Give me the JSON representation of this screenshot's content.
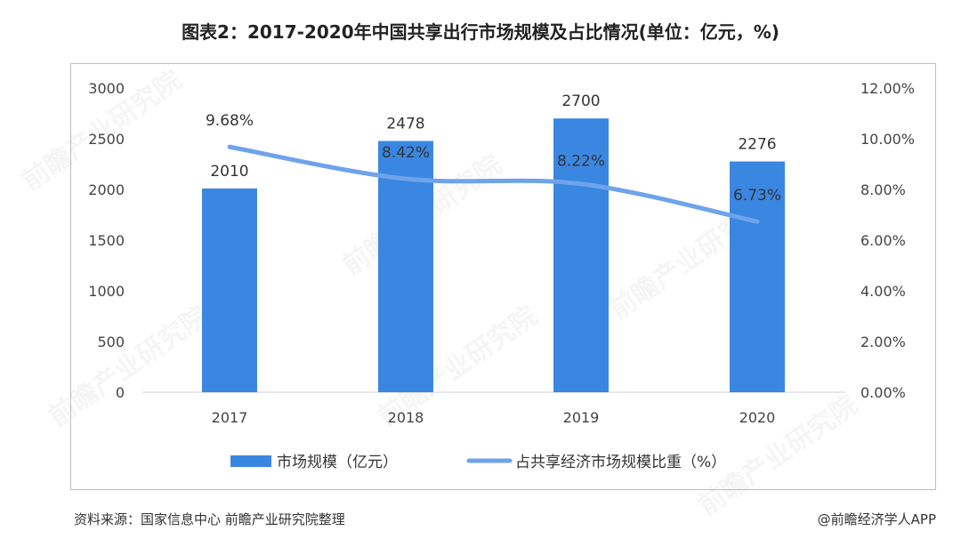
{
  "title": "图表2：2017-2020年中国共享出行市场规模及占比情况(单位：亿元，%)",
  "footer": {
    "source": "资料来源：国家信息中心 前瞻产业研究院整理",
    "credit": "@前瞻经济学人APP"
  },
  "watermark": "前瞻产业研究院",
  "colors": {
    "bar": "#3a87e2",
    "line": "#6fa3ea"
  },
  "chart_data": {
    "type": "bar",
    "categories": [
      "2017",
      "2018",
      "2019",
      "2020"
    ],
    "series": [
      {
        "name": "市场规模（亿元）",
        "type": "bar",
        "axis": "left",
        "values": [
          2010,
          2478,
          2700,
          2276
        ],
        "labels": [
          "2010",
          "2478",
          "2700",
          "2276"
        ]
      },
      {
        "name": "占共享经济市场规模比重（%）",
        "type": "line",
        "axis": "right",
        "values": [
          9.68,
          8.42,
          8.22,
          6.73
        ],
        "labels": [
          "9.68%",
          "8.42%",
          "8.22%",
          "6.73%"
        ]
      }
    ],
    "y_left": {
      "ticks": [
        "0",
        "500",
        "1000",
        "1500",
        "2000",
        "2500",
        "3000"
      ],
      "ylim": [
        0,
        3000
      ]
    },
    "y_right": {
      "ticks": [
        "0.00%",
        "2.00%",
        "4.00%",
        "6.00%",
        "8.00%",
        "10.00%",
        "12.00%"
      ],
      "ylim": [
        0,
        12
      ]
    },
    "legend": "bottom",
    "grid": false
  }
}
